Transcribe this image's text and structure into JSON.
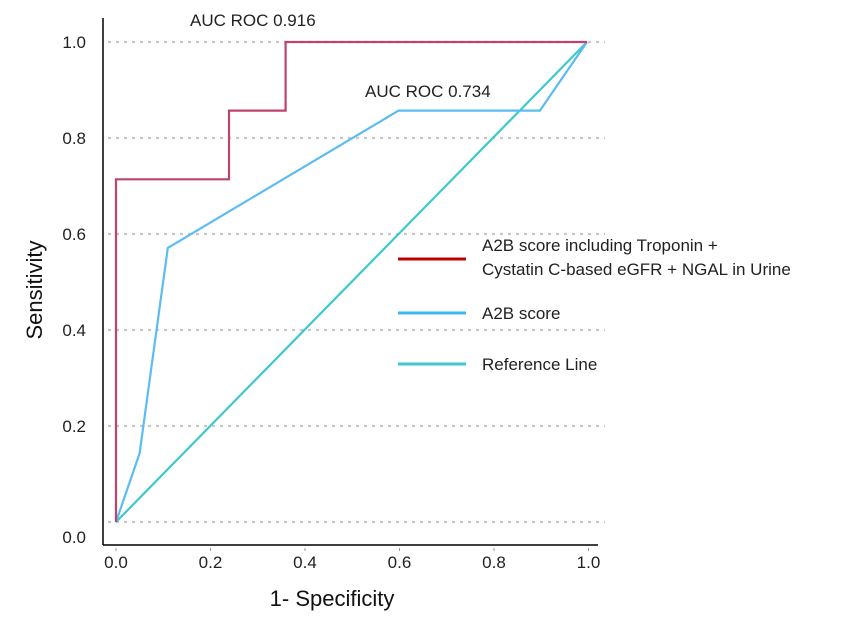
{
  "chart_data": {
    "type": "line",
    "xlabel": "1- Specificity",
    "ylabel": "Sensitivity",
    "xlim": [
      0,
      1
    ],
    "ylim": [
      0,
      1
    ],
    "x_ticks": [
      "0.0",
      "0.2",
      "0.4",
      "0.6",
      "0.8",
      "1.0"
    ],
    "y_ticks": [
      "0.0",
      "0.2",
      "0.4",
      "0.6",
      "0.8",
      "1.0"
    ],
    "grid": "horizontal dotted",
    "legend_position": "right",
    "series": [
      {
        "name": "A2B score including Troponin + Cystatin C-based eGFR + NGAL in Urine",
        "legend_lines": [
          "A2B score including Troponin +",
          "Cystatin C-based eGFR + NGAL in Urine"
        ],
        "color": "#c0436e",
        "legend_color": "#c00000",
        "x": [
          0.0,
          0.0,
          0.24,
          0.24,
          0.36,
          0.36,
          1.0
        ],
        "y": [
          0.0,
          0.714,
          0.714,
          0.857,
          0.857,
          1.0,
          1.0
        ]
      },
      {
        "name": "A2B score",
        "legend_lines": [
          "A2B score"
        ],
        "color": "#5bbcf2",
        "legend_color": "#3cb9f2",
        "x": [
          0.0,
          0.05,
          0.11,
          0.6,
          0.9,
          1.0
        ],
        "y": [
          0.0,
          0.143,
          0.571,
          0.857,
          0.857,
          1.0
        ]
      },
      {
        "name": "Reference Line",
        "legend_lines": [
          "Reference Line"
        ],
        "color": "#3ec8cc",
        "legend_color": "#3ec8cc",
        "x": [
          0.0,
          1.0
        ],
        "y": [
          0.0,
          1.0
        ]
      }
    ],
    "annotations": [
      {
        "text": "AUC ROC 0.916",
        "series": 0
      },
      {
        "text": "AUC ROC 0.734",
        "series": 1
      }
    ]
  }
}
